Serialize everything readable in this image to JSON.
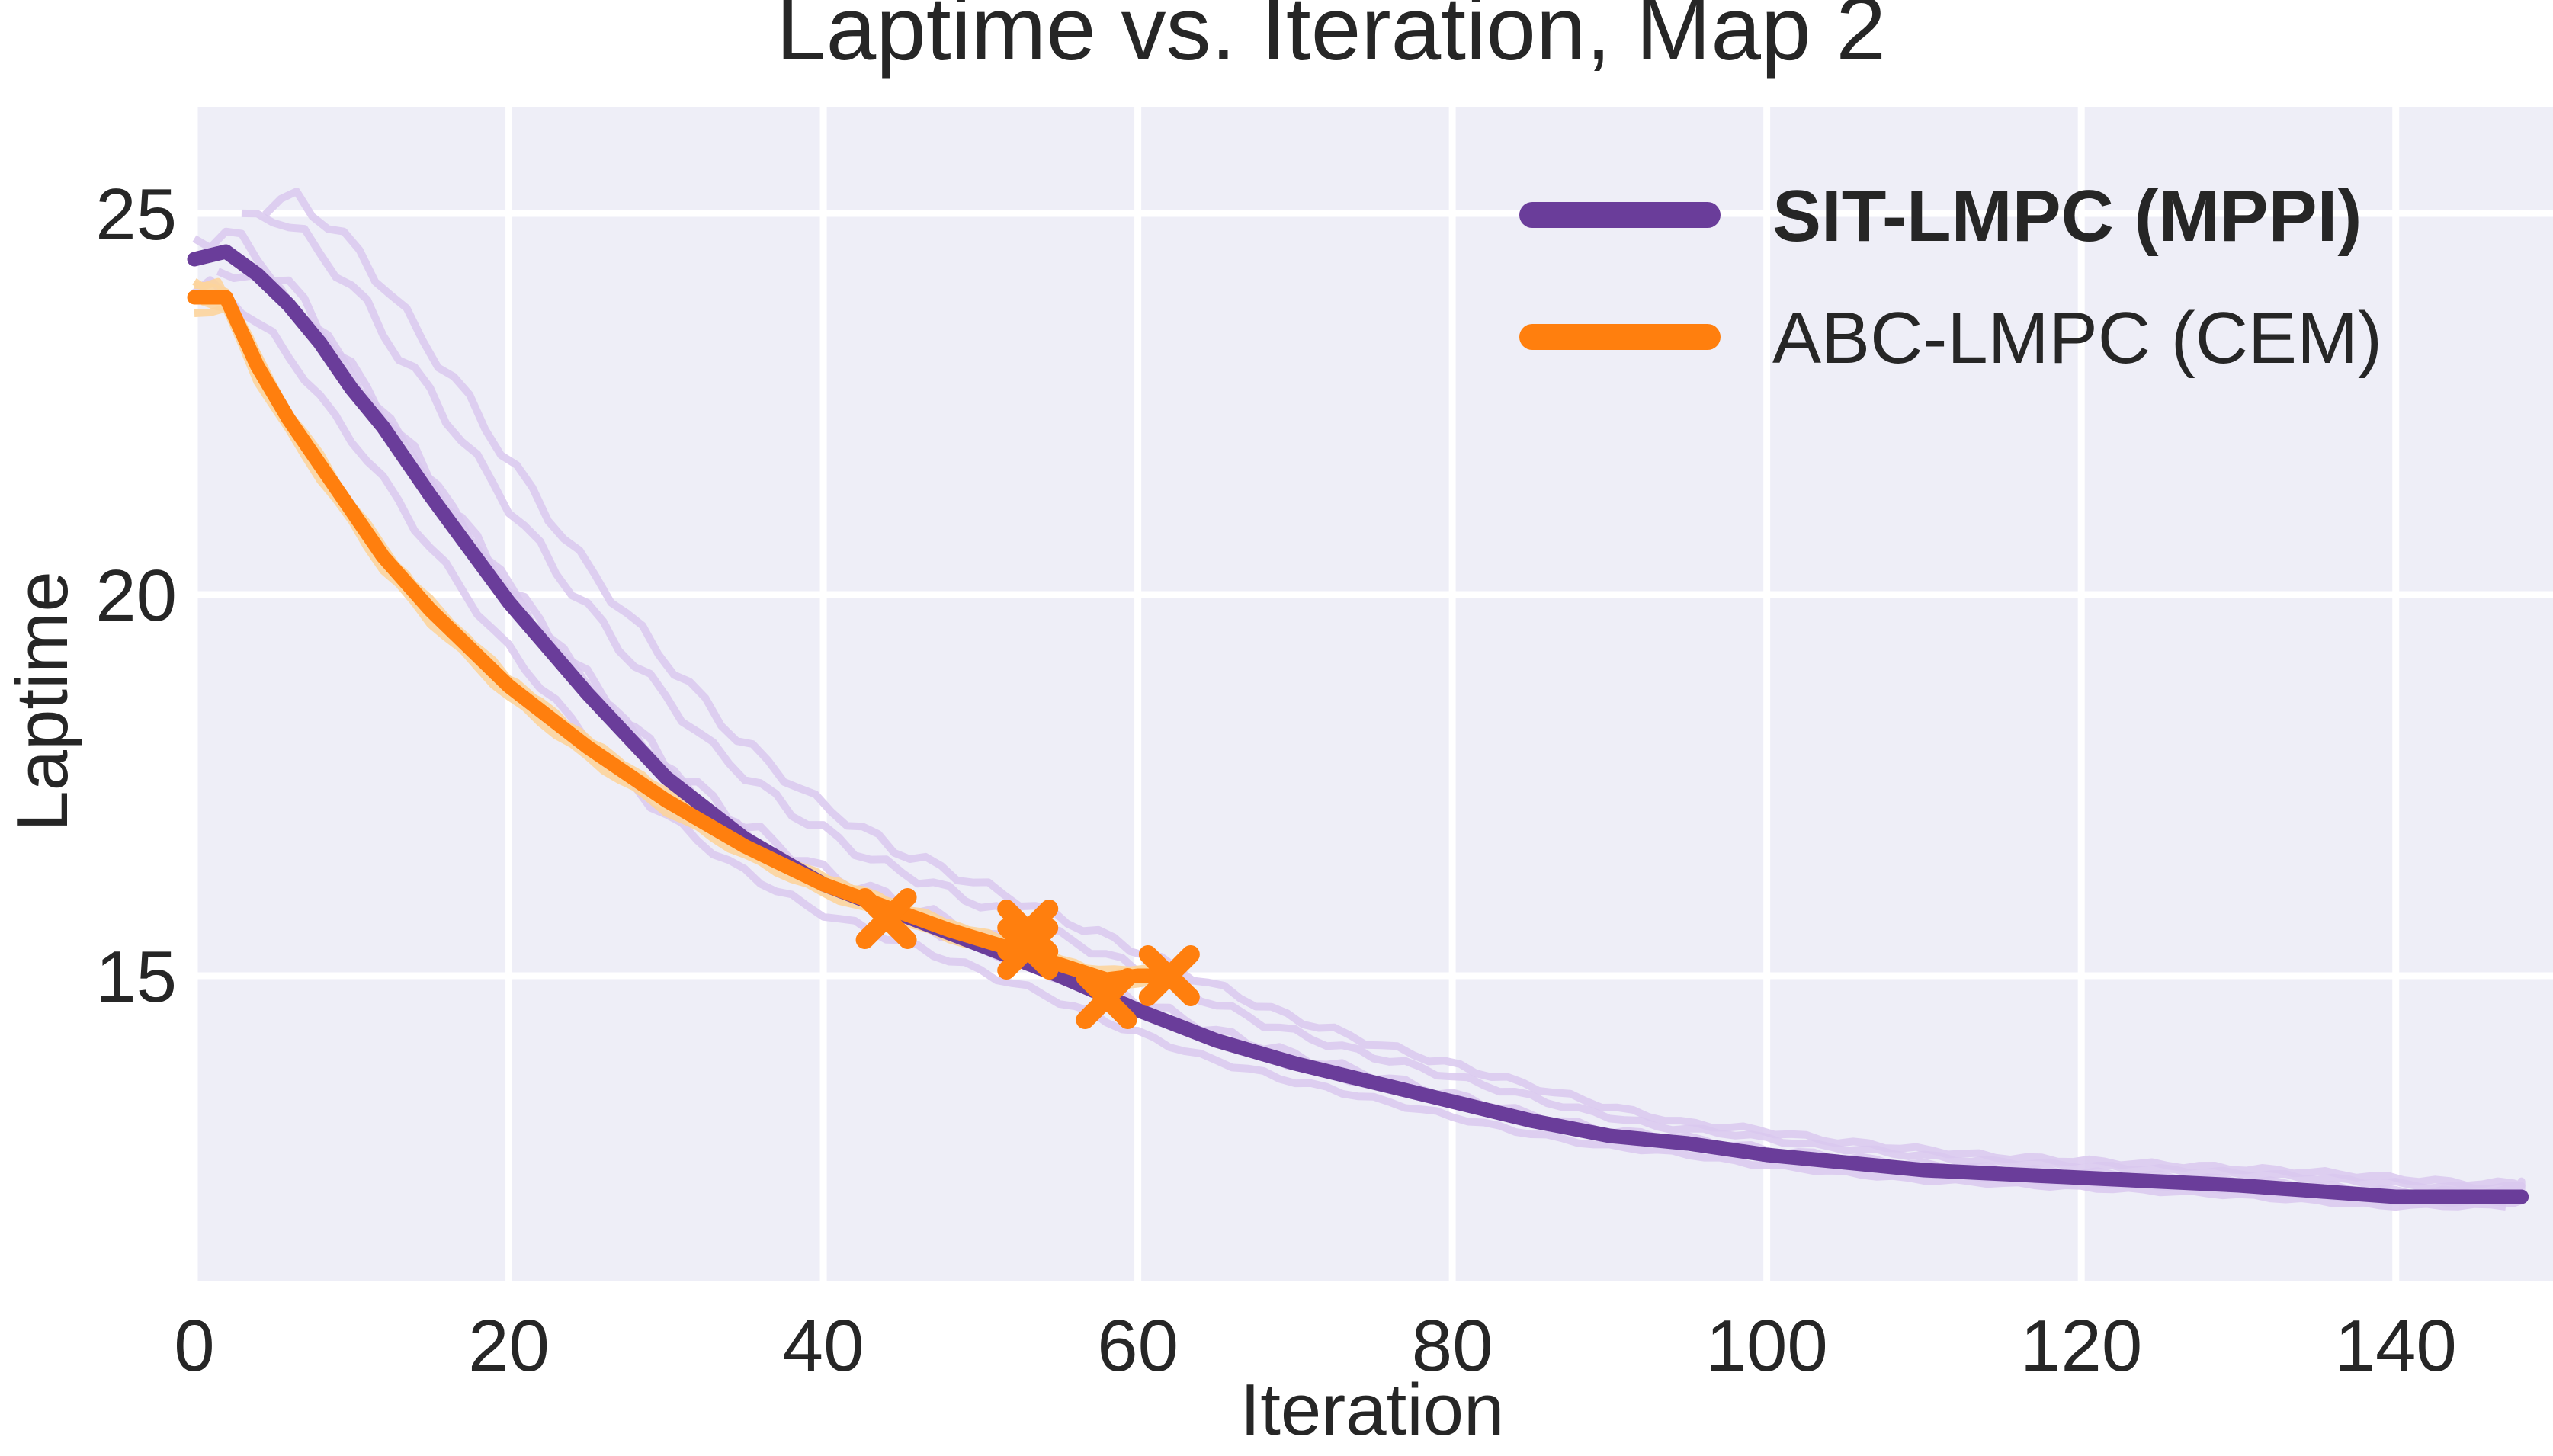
{
  "chart_data": {
    "type": "line",
    "title": "Laptime vs. Iteration, Map 2",
    "xlabel": "Iteration",
    "ylabel": "Laptime",
    "xlim": [
      0,
      150
    ],
    "ylim": [
      11.0,
      26.4
    ],
    "xticks": [
      0,
      20,
      40,
      60,
      80,
      100,
      120,
      140
    ],
    "yticks": [
      15,
      20,
      25
    ],
    "grid": true,
    "legend_position": "top-right",
    "colors": {
      "sit_main": "#6a3d9a",
      "sit_faint": "#d9c8ee",
      "abc_main": "#ff7f0e",
      "abc_faint": "#fcd49c",
      "background": "#eeeef7",
      "grid": "#ffffff"
    },
    "series": [
      {
        "name": "SIT-LMPC (MPPI)",
        "x": [
          0,
          2,
          4,
          6,
          8,
          10,
          12,
          15,
          20,
          25,
          30,
          35,
          40,
          45,
          50,
          55,
          60,
          65,
          70,
          75,
          80,
          85,
          90,
          95,
          100,
          110,
          120,
          130,
          140,
          148
        ],
        "values": [
          24.4,
          24.5,
          24.2,
          23.8,
          23.3,
          22.7,
          22.2,
          21.3,
          19.9,
          18.7,
          17.6,
          16.8,
          16.2,
          15.8,
          15.4,
          15.0,
          14.55,
          14.15,
          13.85,
          13.6,
          13.35,
          13.1,
          12.9,
          12.8,
          12.65,
          12.45,
          12.35,
          12.25,
          12.1,
          12.1
        ]
      },
      {
        "name": "ABC-LMPC (CEM)",
        "x": [
          0,
          2,
          4,
          6,
          8,
          10,
          12,
          15,
          20,
          25,
          30,
          35,
          40,
          44,
          48,
          52,
          55,
          58,
          60,
          62
        ],
        "values": [
          23.9,
          23.9,
          23.0,
          22.3,
          21.7,
          21.1,
          20.5,
          19.8,
          18.8,
          18.0,
          17.3,
          16.7,
          16.2,
          15.9,
          15.6,
          15.35,
          15.15,
          14.95,
          15.0,
          15.0
        ]
      }
    ],
    "failure_markers": {
      "x": [
        44,
        53,
        53,
        58,
        62
      ],
      "values": [
        15.75,
        15.6,
        15.35,
        14.7,
        15.0
      ]
    }
  }
}
